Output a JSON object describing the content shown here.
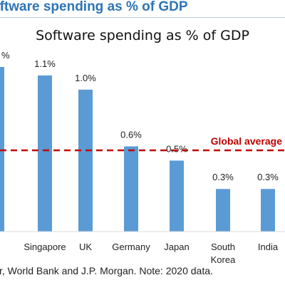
{
  "header": {
    "title": "oftware spending as % of GDP"
  },
  "footer": {
    "note": "r, World Bank and J.P. Morgan. Note: 2020 data."
  },
  "colors": {
    "bar": "#5b9bd5",
    "reference_line": "#c00000",
    "heading": "#2e74b5"
  },
  "chart_data": {
    "type": "bar",
    "title": "Software spending as % of GDP",
    "xlabel": "",
    "ylabel": "",
    "ylim": [
      0,
      1.25
    ],
    "grid": false,
    "legend": "none",
    "categories": [
      "",
      "Singapore",
      "UK",
      "Germany",
      "Japan",
      "South Korea",
      "India"
    ],
    "values": [
      1.26,
      1.1,
      1.0,
      0.6,
      0.5,
      0.3,
      0.3
    ],
    "data_labels": [
      "%",
      "1.1%",
      "1.0%",
      "0.6%",
      "0.5%",
      "0.3%",
      "0.3%"
    ],
    "reference_line": {
      "label": "Global average",
      "value": 0.55,
      "style": "dashed"
    }
  }
}
